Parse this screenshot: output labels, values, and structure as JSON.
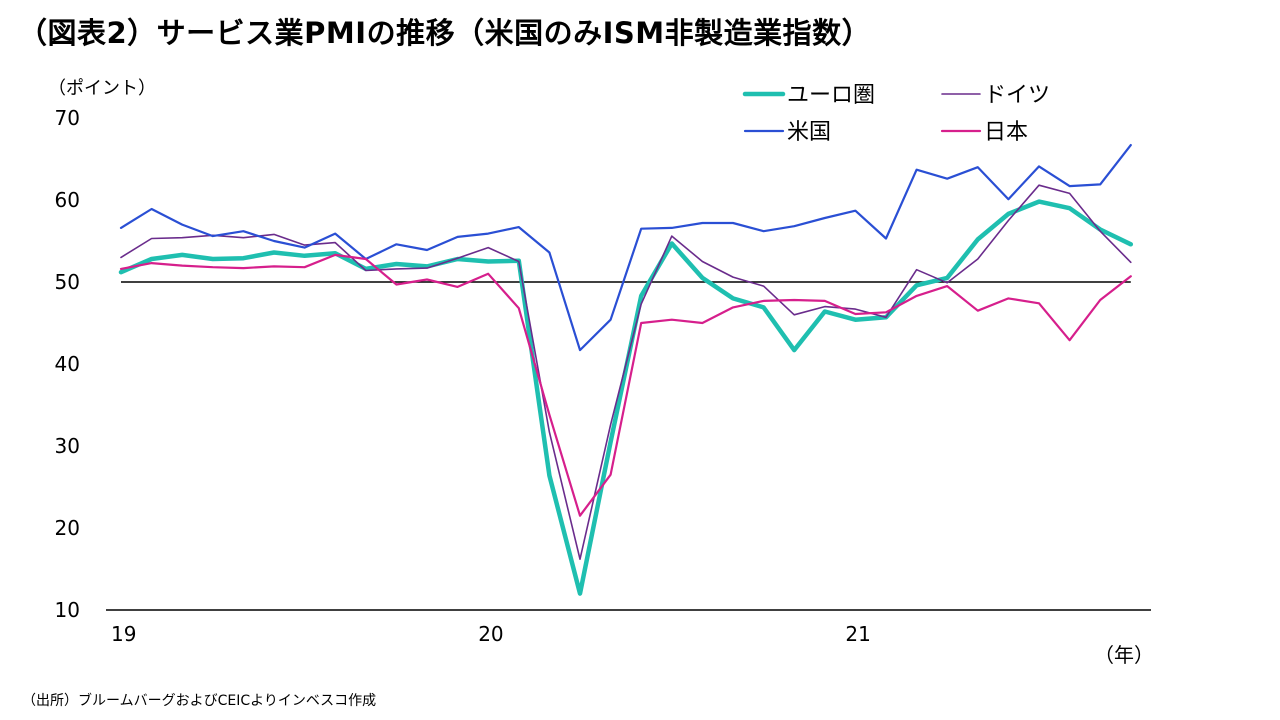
{
  "title": "（図表2）サービス業PMIの推移（米国のみISM非製造業指数）",
  "source_note": "（出所）ブルームバーグおよびCEICよりインベスコ作成",
  "chart_data": {
    "type": "line",
    "ylabel": "（ポイント）",
    "xlabel": "（年）",
    "ylim": [
      10,
      70
    ],
    "yticks": [
      10,
      20,
      30,
      40,
      50,
      60,
      70
    ],
    "xticks": [
      {
        "label": "19",
        "month_index": 0
      },
      {
        "label": "20",
        "month_index": 12
      },
      {
        "label": "21",
        "month_index": 24
      }
    ],
    "reference_line": 50,
    "legend_position": "top-right",
    "series": [
      {
        "name": "ユーロ圏",
        "color": "#1fbfb0",
        "stroke_width": 4.5,
        "values": [
          51.2,
          52.8,
          53.3,
          52.8,
          52.9,
          53.6,
          53.2,
          53.5,
          51.6,
          52.2,
          51.9,
          52.8,
          52.5,
          52.6,
          26.4,
          12.0,
          30.5,
          48.3,
          54.7,
          50.5,
          48.0,
          46.9,
          41.7,
          46.4,
          45.4,
          45.7,
          49.6,
          50.5,
          55.2,
          58.3,
          59.8,
          59.0,
          56.4,
          54.6
        ]
      },
      {
        "name": "ドイツ",
        "color": "#6a2c8c",
        "stroke_width": 1.6,
        "values": [
          53.0,
          55.3,
          55.4,
          55.7,
          55.4,
          55.8,
          54.5,
          54.8,
          51.4,
          51.6,
          51.7,
          52.9,
          54.2,
          52.5,
          31.7,
          16.2,
          32.6,
          47.3,
          55.6,
          52.5,
          50.6,
          49.5,
          46.0,
          47.0,
          46.7,
          45.7,
          51.5,
          49.9,
          52.8,
          57.5,
          61.8,
          60.8,
          56.2,
          52.4
        ]
      },
      {
        "name": "米国",
        "color": "#2a4fd4",
        "stroke_width": 2.2,
        "values": [
          56.6,
          58.9,
          57.0,
          55.6,
          56.2,
          55.0,
          54.2,
          55.9,
          52.8,
          54.6,
          53.9,
          55.5,
          55.9,
          56.7,
          53.6,
          41.7,
          45.4,
          56.5,
          56.6,
          57.2,
          57.2,
          56.2,
          56.8,
          57.8,
          58.7,
          55.3,
          63.7,
          62.6,
          64.0,
          60.1,
          64.1,
          61.7,
          61.9,
          66.7
        ]
      },
      {
        "name": "日本",
        "color": "#d61f8c",
        "stroke_width": 2.2,
        "values": [
          51.6,
          52.3,
          52.0,
          51.8,
          51.7,
          51.9,
          51.8,
          53.3,
          52.8,
          49.7,
          50.3,
          49.4,
          51.0,
          46.8,
          33.8,
          21.5,
          26.5,
          45.0,
          45.4,
          45.0,
          46.9,
          47.7,
          47.8,
          47.7,
          46.1,
          46.3,
          48.3,
          49.5,
          46.5,
          48.0,
          47.4,
          42.9,
          47.8,
          50.7
        ]
      }
    ]
  }
}
